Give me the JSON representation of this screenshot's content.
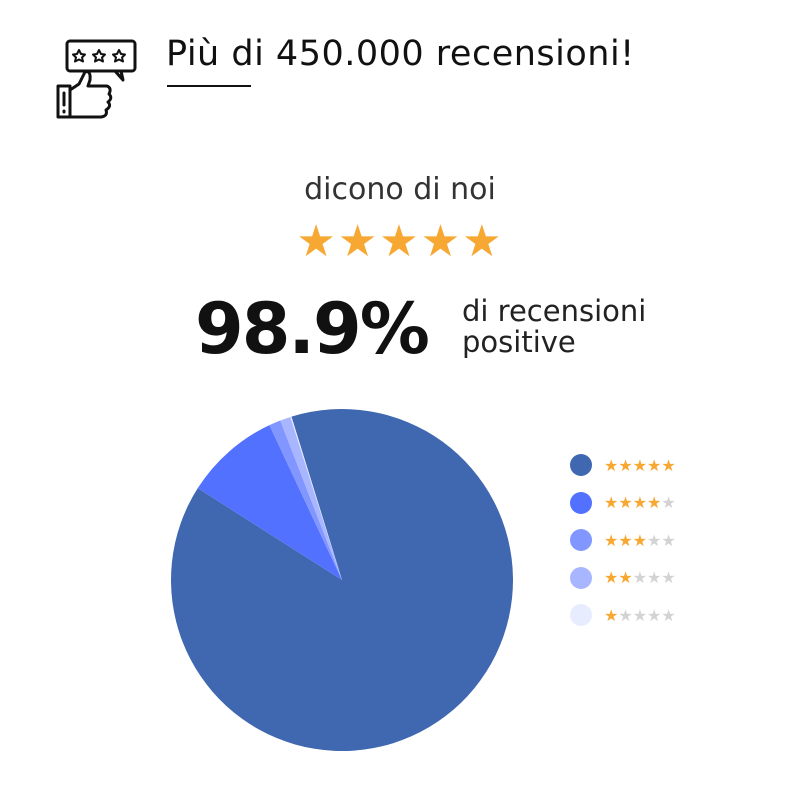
{
  "header": {
    "title": "Più di 450.000 recensioni!",
    "icon": "thumbs-up-review-icon"
  },
  "subtitle": "dicono di noi",
  "rating_stars": 5,
  "percent": "98.9%",
  "percent_label_line1": "di recensioni",
  "percent_label_line2": "positive",
  "colors": {
    "star_on": "#f7a833",
    "star_off": "#d3d3d3"
  },
  "chart_data": {
    "type": "pie",
    "categories": [
      "★★★★★",
      "★★★★☆",
      "★★★☆☆",
      "★★☆☆☆",
      "★☆☆☆☆"
    ],
    "stars": [
      5,
      4,
      3,
      2,
      1
    ],
    "values": [
      88.8,
      9.0,
      1.1,
      1.0,
      0.1
    ],
    "colors": [
      "#3f68b0",
      "#5271ff",
      "#8197ff",
      "#a8b6ff",
      "#e8ecff"
    ],
    "legend": "right"
  }
}
